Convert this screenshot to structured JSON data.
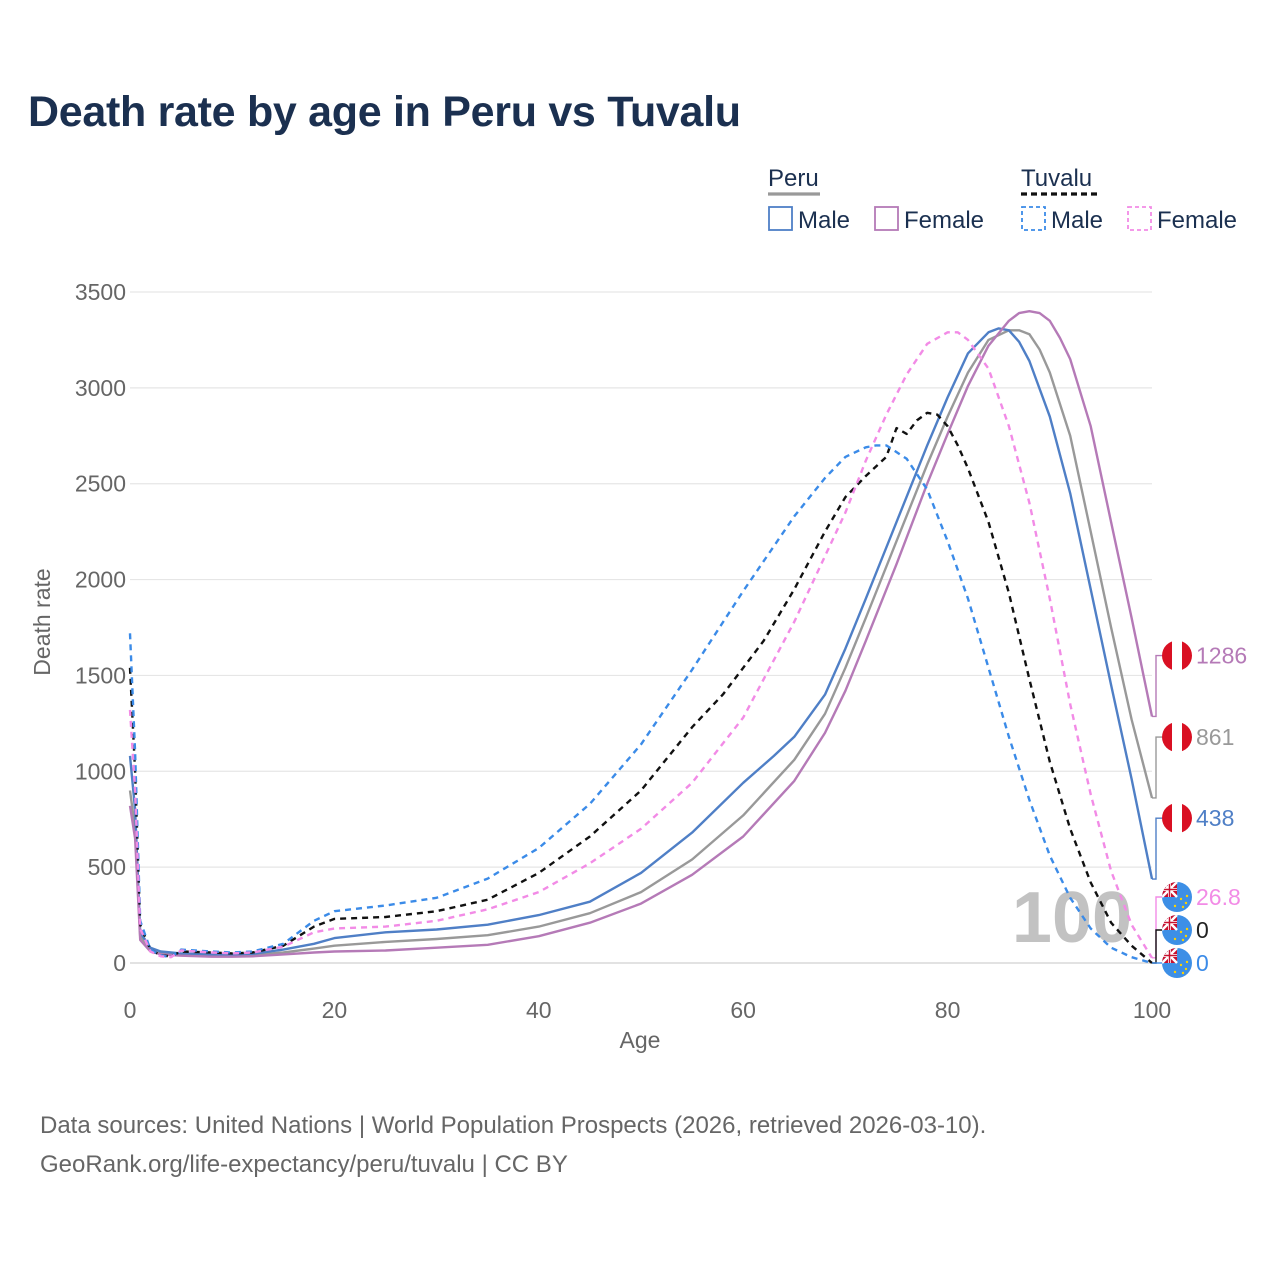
{
  "title": "Death rate by age in Peru vs Tuvalu",
  "footer": {
    "line1": "Data sources: United Nations | World Population Prospects (2026, retrieved 2026-03-10).",
    "line2": "GeoRank.org/life-expectancy/peru/tuvalu | CC BY"
  },
  "legend": {
    "groups": [
      {
        "name": "Peru",
        "line_color": "#999999",
        "dashed": false,
        "items": [
          {
            "label": "Male",
            "color": "#4f7fc6"
          },
          {
            "label": "Female",
            "color": "#b57ab7"
          }
        ]
      },
      {
        "name": "Tuvalu",
        "line_color": "#111111",
        "dashed": true,
        "items": [
          {
            "label": "Male",
            "color": "#3b8be8"
          },
          {
            "label": "Female",
            "color": "#f28be6"
          }
        ]
      }
    ]
  },
  "watermark": "100",
  "chart_data": {
    "type": "line",
    "title": "Death rate by age in Peru vs Tuvalu",
    "xlabel": "Age",
    "ylabel": "Death rate",
    "xlim": [
      0,
      100
    ],
    "ylim": [
      0,
      3500
    ],
    "xticks": [
      0,
      20,
      40,
      60,
      80,
      100
    ],
    "yticks": [
      0,
      500,
      1000,
      1500,
      2000,
      2500,
      3000,
      3500
    ],
    "grid": true,
    "series": [
      {
        "name": "Peru Total",
        "country": "Peru",
        "sex": "Total",
        "color": "#999999",
        "dashed": false,
        "end_label": "861",
        "x": [
          0,
          0.5,
          1,
          2,
          3,
          5,
          8,
          10,
          12,
          15,
          18,
          20,
          25,
          30,
          35,
          40,
          45,
          50,
          55,
          60,
          65,
          68,
          70,
          72,
          75,
          78,
          80,
          82,
          84,
          86,
          87,
          88,
          89,
          90,
          92,
          94,
          96,
          98,
          100
        ],
        "y": [
          900,
          700,
          140,
          70,
          55,
          45,
          40,
          40,
          42,
          55,
          75,
          90,
          110,
          125,
          145,
          190,
          260,
          370,
          540,
          770,
          1060,
          1300,
          1540,
          1800,
          2200,
          2600,
          2850,
          3080,
          3250,
          3300,
          3300,
          3280,
          3200,
          3080,
          2750,
          2250,
          1750,
          1270,
          861
        ]
      },
      {
        "name": "Peru Male",
        "country": "Peru",
        "sex": "Male",
        "color": "#4f7fc6",
        "dashed": false,
        "end_label": "438",
        "x": [
          0,
          0.5,
          1,
          2,
          3,
          5,
          8,
          10,
          12,
          15,
          18,
          20,
          25,
          30,
          35,
          40,
          45,
          50,
          55,
          60,
          63,
          65,
          68,
          70,
          72,
          75,
          78,
          80,
          82,
          84,
          85,
          86,
          87,
          88,
          90,
          92,
          94,
          96,
          98,
          100
        ],
        "y": [
          1080,
          800,
          160,
          80,
          60,
          50,
          45,
          45,
          48,
          70,
          100,
          130,
          160,
          175,
          200,
          250,
          320,
          470,
          680,
          940,
          1080,
          1180,
          1400,
          1640,
          1900,
          2300,
          2700,
          2950,
          3180,
          3290,
          3310,
          3300,
          3240,
          3140,
          2850,
          2450,
          1950,
          1450,
          960,
          438
        ]
      },
      {
        "name": "Peru Female",
        "country": "Peru",
        "sex": "Female",
        "color": "#b57ab7",
        "dashed": false,
        "end_label": "1286",
        "x": [
          0,
          0.5,
          1,
          2,
          3,
          5,
          8,
          10,
          12,
          15,
          18,
          20,
          25,
          30,
          35,
          40,
          45,
          50,
          55,
          60,
          65,
          68,
          70,
          72,
          75,
          78,
          80,
          82,
          84,
          86,
          87,
          88,
          89,
          90,
          91,
          92,
          94,
          96,
          98,
          100
        ],
        "y": [
          820,
          650,
          120,
          60,
          45,
          38,
          33,
          33,
          35,
          45,
          55,
          60,
          65,
          80,
          95,
          140,
          210,
          310,
          460,
          660,
          950,
          1200,
          1420,
          1680,
          2080,
          2500,
          2760,
          3010,
          3220,
          3350,
          3390,
          3400,
          3390,
          3350,
          3260,
          3150,
          2800,
          2300,
          1800,
          1286
        ]
      },
      {
        "name": "Tuvalu Total",
        "country": "Tuvalu",
        "sex": "Total",
        "color": "#111111",
        "dashed": true,
        "end_label": "0",
        "x": [
          0,
          0.5,
          1,
          2,
          3,
          4,
          5,
          8,
          10,
          12,
          15,
          18,
          20,
          25,
          30,
          35,
          40,
          45,
          50,
          55,
          58,
          60,
          62,
          65,
          68,
          70,
          72,
          74,
          75,
          76,
          77,
          78,
          79,
          80,
          81,
          82,
          84,
          86,
          88,
          90,
          92,
          94,
          96,
          98,
          100
        ],
        "y": [
          1540,
          1000,
          200,
          70,
          40,
          35,
          60,
          55,
          50,
          55,
          90,
          190,
          230,
          240,
          270,
          330,
          470,
          660,
          900,
          1230,
          1400,
          1540,
          1680,
          1950,
          2250,
          2430,
          2540,
          2640,
          2790,
          2760,
          2830,
          2870,
          2860,
          2800,
          2700,
          2580,
          2300,
          1930,
          1480,
          1050,
          700,
          420,
          210,
          90,
          0
        ]
      },
      {
        "name": "Tuvalu Male",
        "country": "Tuvalu",
        "sex": "Male",
        "color": "#3b8be8",
        "dashed": true,
        "end_label": "0",
        "x": [
          0,
          0.5,
          1,
          2,
          3,
          4,
          5,
          8,
          10,
          12,
          15,
          18,
          20,
          25,
          30,
          35,
          40,
          45,
          50,
          55,
          60,
          65,
          68,
          70,
          72,
          73,
          74,
          76,
          78,
          80,
          82,
          84,
          86,
          88,
          90,
          92,
          94,
          96,
          98,
          100
        ],
        "y": [
          1720,
          1100,
          220,
          70,
          40,
          30,
          70,
          60,
          55,
          60,
          100,
          220,
          270,
          300,
          340,
          440,
          600,
          830,
          1140,
          1530,
          1940,
          2330,
          2530,
          2640,
          2690,
          2700,
          2700,
          2630,
          2470,
          2200,
          1900,
          1540,
          1180,
          850,
          560,
          340,
          180,
          80,
          30,
          0
        ]
      },
      {
        "name": "Tuvalu Female",
        "country": "Tuvalu",
        "sex": "Female",
        "color": "#f28be6",
        "dashed": true,
        "end_label": "26.8",
        "x": [
          0,
          0.5,
          1,
          2,
          3,
          4,
          5,
          8,
          10,
          12,
          15,
          18,
          20,
          25,
          30,
          35,
          40,
          45,
          50,
          55,
          60,
          65,
          70,
          72,
          74,
          76,
          78,
          80,
          81,
          82,
          84,
          86,
          88,
          90,
          92,
          94,
          96,
          98,
          100
        ],
        "y": [
          1320,
          900,
          180,
          60,
          35,
          30,
          65,
          55,
          50,
          55,
          85,
          160,
          180,
          190,
          220,
          280,
          370,
          520,
          700,
          940,
          1280,
          1780,
          2350,
          2620,
          2860,
          3070,
          3230,
          3290,
          3290,
          3250,
          3100,
          2800,
          2400,
          1900,
          1350,
          880,
          480,
          200,
          26.8
        ]
      }
    ]
  }
}
